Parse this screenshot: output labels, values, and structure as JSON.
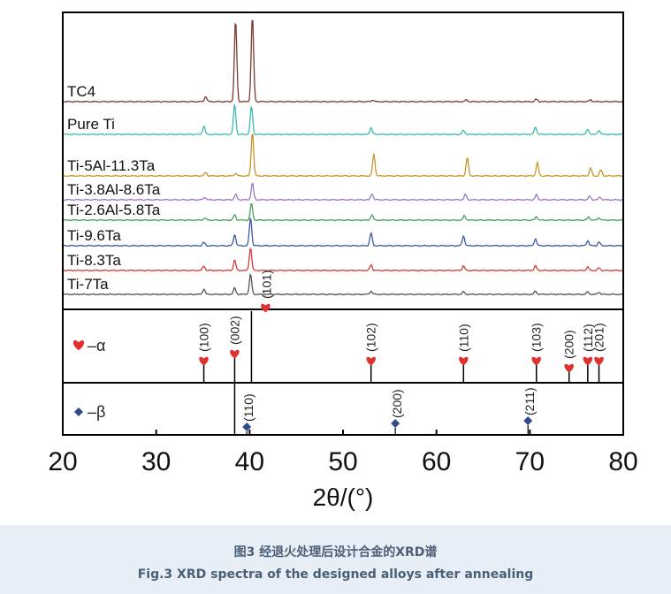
{
  "caption": {
    "cn": "图3 经退火处理后设计合金的XRD谱",
    "en": "Fig.3 XRD spectra of the designed alloys after annealing"
  },
  "chart_data": {
    "type": "line",
    "xlabel": "2θ/(°)",
    "xlim": [
      20,
      80
    ],
    "xticks": [
      "20",
      "30",
      "40",
      "50",
      "60",
      "70",
      "80"
    ],
    "series": [
      {
        "name": "TC4",
        "color": "#7a3b34",
        "peaks": [
          [
            35.3,
            0.06
          ],
          [
            38.5,
            0.95
          ],
          [
            40.3,
            1.0
          ],
          [
            53.2,
            0.02
          ],
          [
            63.2,
            0.02
          ],
          [
            70.7,
            0.03
          ],
          [
            76.5,
            0.02
          ]
        ]
      },
      {
        "name": "Pure Ti",
        "color": "#3fbcb0",
        "peaks": [
          [
            35.1,
            0.25
          ],
          [
            38.4,
            0.9
          ],
          [
            40.2,
            0.85
          ],
          [
            53.0,
            0.2
          ],
          [
            62.9,
            0.12
          ],
          [
            70.6,
            0.22
          ],
          [
            76.2,
            0.15
          ],
          [
            77.4,
            0.12
          ]
        ]
      },
      {
        "name": "Ti-5Al-11.3Ta",
        "color": "#c7952a",
        "peaks": [
          [
            35.3,
            0.08
          ],
          [
            38.5,
            0.06
          ],
          [
            40.3,
            1.0
          ],
          [
            53.3,
            0.5
          ],
          [
            63.3,
            0.42
          ],
          [
            70.8,
            0.3
          ],
          [
            76.5,
            0.18
          ],
          [
            77.6,
            0.14
          ]
        ]
      },
      {
        "name": "Ti-3.8Al-8.6Ta",
        "color": "#9b78c4",
        "peaks": [
          [
            35.2,
            0.15
          ],
          [
            38.5,
            0.3
          ],
          [
            40.3,
            0.95
          ],
          [
            53.1,
            0.35
          ],
          [
            63.1,
            0.3
          ],
          [
            70.7,
            0.28
          ],
          [
            76.4,
            0.2
          ],
          [
            77.5,
            0.15
          ]
        ]
      },
      {
        "name": "Ti-2.6Al-5.8Ta",
        "color": "#4aa05c",
        "peaks": [
          [
            35.2,
            0.12
          ],
          [
            38.4,
            0.3
          ],
          [
            40.2,
            0.95
          ],
          [
            53.1,
            0.3
          ],
          [
            63.0,
            0.25
          ],
          [
            70.7,
            0.2
          ],
          [
            76.3,
            0.18
          ],
          [
            77.4,
            0.14
          ]
        ]
      },
      {
        "name": "Ti-9.6Ta",
        "color": "#3c5aa0",
        "peaks": [
          [
            35.1,
            0.12
          ],
          [
            38.4,
            0.4
          ],
          [
            40.1,
            1.0
          ],
          [
            53.0,
            0.45
          ],
          [
            62.9,
            0.35
          ],
          [
            70.6,
            0.25
          ],
          [
            76.2,
            0.18
          ],
          [
            77.4,
            0.14
          ]
        ]
      },
      {
        "name": "Ti-8.3Ta",
        "color": "#d23c3c",
        "peaks": [
          [
            35.1,
            0.2
          ],
          [
            38.4,
            0.45
          ],
          [
            40.1,
            1.0
          ],
          [
            53.0,
            0.25
          ],
          [
            62.9,
            0.2
          ],
          [
            70.6,
            0.2
          ],
          [
            76.2,
            0.15
          ],
          [
            77.4,
            0.12
          ]
        ]
      },
      {
        "name": "Ti-7Ta",
        "color": "#555555",
        "peaks": [
          [
            35.1,
            0.25
          ],
          [
            38.4,
            0.3
          ],
          [
            40.1,
            0.95
          ],
          [
            53.0,
            0.15
          ],
          [
            62.9,
            0.12
          ],
          [
            70.6,
            0.15
          ],
          [
            76.2,
            0.12
          ],
          [
            77.4,
            0.1
          ]
        ]
      }
    ],
    "alpha": {
      "label": "–α",
      "color": "#e03030",
      "peaks": [
        {
          "hkl": "(100)",
          "x": 35.1
        },
        {
          "hkl": "(002)",
          "x": 38.4
        },
        {
          "hkl": "(101)",
          "x": 40.2
        },
        {
          "hkl": "(102)",
          "x": 53.0
        },
        {
          "hkl": "(110)",
          "x": 62.9
        },
        {
          "hkl": "(103)",
          "x": 70.7
        },
        {
          "hkl": "(200)",
          "x": 74.2
        },
        {
          "hkl": "(112)",
          "x": 76.2
        },
        {
          "hkl": "(201)",
          "x": 77.4
        }
      ]
    },
    "beta": {
      "label": "–β",
      "color": "#2f4a8c",
      "peaks": [
        {
          "hkl": "(110)",
          "x": 39.7
        },
        {
          "hkl": "(200)",
          "x": 55.6
        },
        {
          "hkl": "(211)",
          "x": 69.8
        }
      ]
    }
  }
}
